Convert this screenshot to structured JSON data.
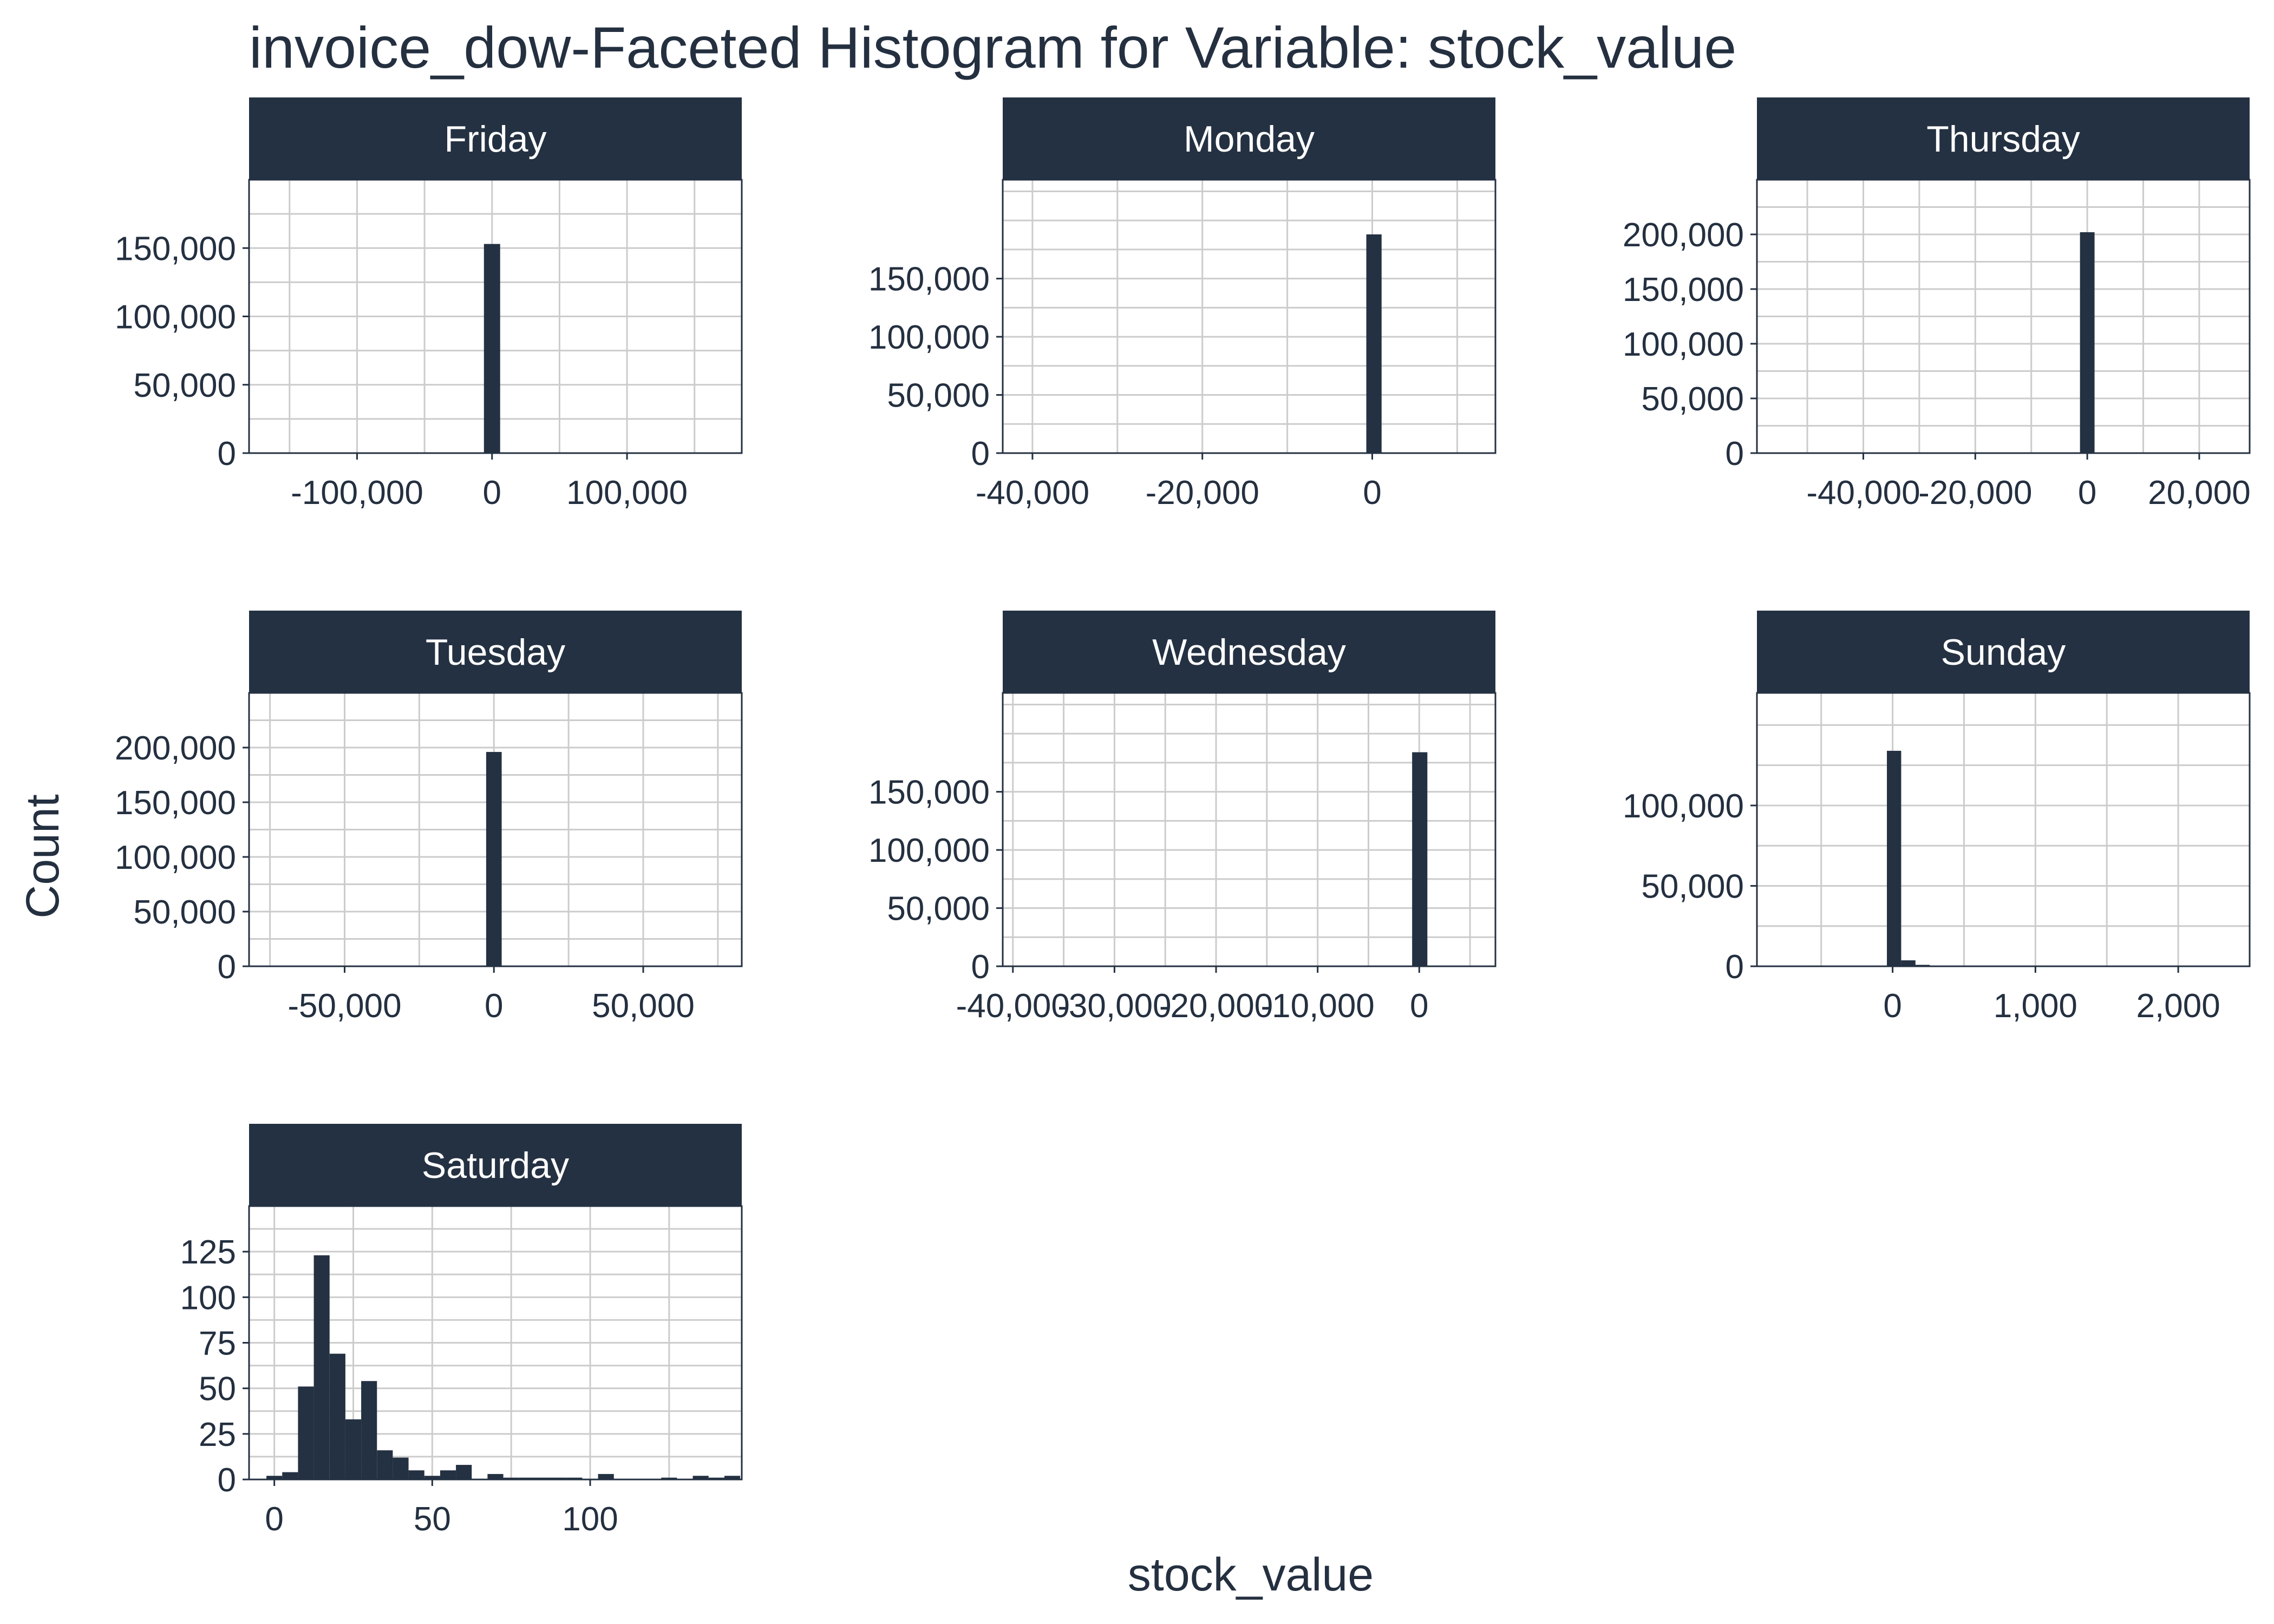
{
  "chart_data": {
    "type": "bar",
    "title": "invoice_dow-Faceted Histogram for Variable: stock_value",
    "xlabel": "stock_value",
    "ylabel": "Count",
    "colors": {
      "bar": "#243142",
      "strip": "#243142",
      "strip_text": "#ffffff",
      "text": "#243040",
      "grid": "#cccccc",
      "frame": "#243142"
    },
    "grid": true,
    "facets": [
      {
        "name": "Friday",
        "xlim": [
          -180000,
          185000
        ],
        "ylim": [
          0,
          200000
        ],
        "x_ticks": [
          {
            "value": -100000,
            "label": "-100,000"
          },
          {
            "value": 0,
            "label": "0"
          },
          {
            "value": 100000,
            "label": "100,000"
          }
        ],
        "y_ticks": [
          {
            "value": 0,
            "label": "0"
          },
          {
            "value": 50000,
            "label": "50,000"
          },
          {
            "value": 100000,
            "label": "100,000"
          },
          {
            "value": 150000,
            "label": "150,000"
          }
        ],
        "bars": [
          {
            "x0": -6000,
            "x1": 6000,
            "count": 153000
          }
        ]
      },
      {
        "name": "Monday",
        "xlim": [
          -43500,
          14500
        ],
        "ylim": [
          0,
          235000
        ],
        "x_ticks": [
          {
            "value": -40000,
            "label": "-40,000"
          },
          {
            "value": -20000,
            "label": "-20,000"
          },
          {
            "value": 0,
            "label": "0"
          }
        ],
        "y_ticks": [
          {
            "value": 0,
            "label": "0"
          },
          {
            "value": 50000,
            "label": "50,000"
          },
          {
            "value": 100000,
            "label": "100,000"
          },
          {
            "value": 150000,
            "label": "150,000"
          }
        ],
        "bars": [
          {
            "x0": -700,
            "x1": 1100,
            "count": 188000
          }
        ]
      },
      {
        "name": "Thursday",
        "xlim": [
          -59000,
          29000
        ],
        "ylim": [
          0,
          250000
        ],
        "x_ticks": [
          {
            "value": -40000,
            "label": "-40,000"
          },
          {
            "value": -20000,
            "label": "-20,000"
          },
          {
            "value": 0,
            "label": "0"
          },
          {
            "value": 20000,
            "label": "20,000"
          }
        ],
        "y_ticks": [
          {
            "value": 0,
            "label": "0"
          },
          {
            "value": 50000,
            "label": "50,000"
          },
          {
            "value": 100000,
            "label": "100,000"
          },
          {
            "value": 150000,
            "label": "150,000"
          },
          {
            "value": 200000,
            "label": "200,000"
          }
        ],
        "bars": [
          {
            "x0": -1300,
            "x1": 1300,
            "count": 202000
          }
        ]
      },
      {
        "name": "Tuesday",
        "xlim": [
          -82000,
          83000
        ],
        "ylim": [
          0,
          250000
        ],
        "x_ticks": [
          {
            "value": -50000,
            "label": "-50,000"
          },
          {
            "value": 0,
            "label": "0"
          },
          {
            "value": 50000,
            "label": "50,000"
          }
        ],
        "y_ticks": [
          {
            "value": 0,
            "label": "0"
          },
          {
            "value": 50000,
            "label": "50,000"
          },
          {
            "value": 100000,
            "label": "100,000"
          },
          {
            "value": 150000,
            "label": "150,000"
          },
          {
            "value": 200000,
            "label": "200,000"
          }
        ],
        "bars": [
          {
            "x0": -2600,
            "x1": 2600,
            "count": 196000
          }
        ]
      },
      {
        "name": "Wednesday",
        "xlim": [
          -41000,
          7500
        ],
        "ylim": [
          0,
          235000
        ],
        "x_ticks": [
          {
            "value": -40000,
            "label": "-40,000"
          },
          {
            "value": -30000,
            "label": "-30,000"
          },
          {
            "value": -20000,
            "label": "-20,000"
          },
          {
            "value": -10000,
            "label": "-10,000"
          },
          {
            "value": 0,
            "label": "0"
          }
        ],
        "y_ticks": [
          {
            "value": 0,
            "label": "0"
          },
          {
            "value": 50000,
            "label": "50,000"
          },
          {
            "value": 100000,
            "label": "100,000"
          },
          {
            "value": 150000,
            "label": "150,000"
          }
        ],
        "bars": [
          {
            "x0": -700,
            "x1": 800,
            "count": 184000
          },
          {
            "x0": 800,
            "x1": 2300,
            "count": 700
          }
        ]
      },
      {
        "name": "Sunday",
        "xlim": [
          -950,
          2500
        ],
        "ylim": [
          0,
          170000
        ],
        "x_ticks": [
          {
            "value": 0,
            "label": "0"
          },
          {
            "value": 1000,
            "label": "1,000"
          },
          {
            "value": 2000,
            "label": "2,000"
          }
        ],
        "y_ticks": [
          {
            "value": 0,
            "label": "0"
          },
          {
            "value": 50000,
            "label": "50,000"
          },
          {
            "value": 100000,
            "label": "100,000"
          }
        ],
        "bars": [
          {
            "x0": -40,
            "x1": 60,
            "count": 134000
          },
          {
            "x0": 60,
            "x1": 160,
            "count": 3700
          },
          {
            "x0": 160,
            "x1": 260,
            "count": 900
          },
          {
            "x0": 260,
            "x1": 360,
            "count": 500
          },
          {
            "x0": 360,
            "x1": 460,
            "count": 200
          }
        ]
      },
      {
        "name": "Saturday",
        "xlim": [
          -8,
          148
        ],
        "ylim": [
          0,
          150
        ],
        "x_ticks": [
          {
            "value": 0,
            "label": "0"
          },
          {
            "value": 50,
            "label": "50"
          },
          {
            "value": 100,
            "label": "100"
          }
        ],
        "y_ticks": [
          {
            "value": 0,
            "label": "0"
          },
          {
            "value": 25,
            "label": "25"
          },
          {
            "value": 50,
            "label": "50"
          },
          {
            "value": 75,
            "label": "75"
          },
          {
            "value": 100,
            "label": "100"
          },
          {
            "value": 125,
            "label": "125"
          }
        ],
        "bars": [
          {
            "x0": -2.5,
            "x1": 2.5,
            "count": 2
          },
          {
            "x0": 2.5,
            "x1": 7.5,
            "count": 4
          },
          {
            "x0": 7.5,
            "x1": 12.5,
            "count": 51
          },
          {
            "x0": 12.5,
            "x1": 17.5,
            "count": 123
          },
          {
            "x0": 17.5,
            "x1": 22.5,
            "count": 69
          },
          {
            "x0": 22.5,
            "x1": 27.5,
            "count": 33
          },
          {
            "x0": 27.5,
            "x1": 32.5,
            "count": 54
          },
          {
            "x0": 32.5,
            "x1": 37.5,
            "count": 16
          },
          {
            "x0": 37.5,
            "x1": 42.5,
            "count": 12
          },
          {
            "x0": 42.5,
            "x1": 47.5,
            "count": 5
          },
          {
            "x0": 47.5,
            "x1": 52.5,
            "count": 2
          },
          {
            "x0": 52.5,
            "x1": 57.5,
            "count": 5
          },
          {
            "x0": 57.5,
            "x1": 62.5,
            "count": 8
          },
          {
            "x0": 62.5,
            "x1": 67.5,
            "count": 0
          },
          {
            "x0": 67.5,
            "x1": 72.5,
            "count": 3
          },
          {
            "x0": 72.5,
            "x1": 77.5,
            "count": 1
          },
          {
            "x0": 77.5,
            "x1": 82.5,
            "count": 1
          },
          {
            "x0": 82.5,
            "x1": 87.5,
            "count": 1
          },
          {
            "x0": 87.5,
            "x1": 92.5,
            "count": 1
          },
          {
            "x0": 92.5,
            "x1": 97.5,
            "count": 1
          },
          {
            "x0": 97.5,
            "x1": 102.5,
            "count": 0
          },
          {
            "x0": 102.5,
            "x1": 107.5,
            "count": 3
          },
          {
            "x0": 107.5,
            "x1": 112.5,
            "count": 0
          },
          {
            "x0": 112.5,
            "x1": 117.5,
            "count": 0
          },
          {
            "x0": 117.5,
            "x1": 122.5,
            "count": 0
          },
          {
            "x0": 122.5,
            "x1": 127.5,
            "count": 1
          },
          {
            "x0": 127.5,
            "x1": 132.5,
            "count": 0
          },
          {
            "x0": 132.5,
            "x1": 137.5,
            "count": 2
          },
          {
            "x0": 137.5,
            "x1": 142.5,
            "count": 1
          },
          {
            "x0": 142.5,
            "x1": 147.5,
            "count": 2
          }
        ]
      }
    ]
  }
}
